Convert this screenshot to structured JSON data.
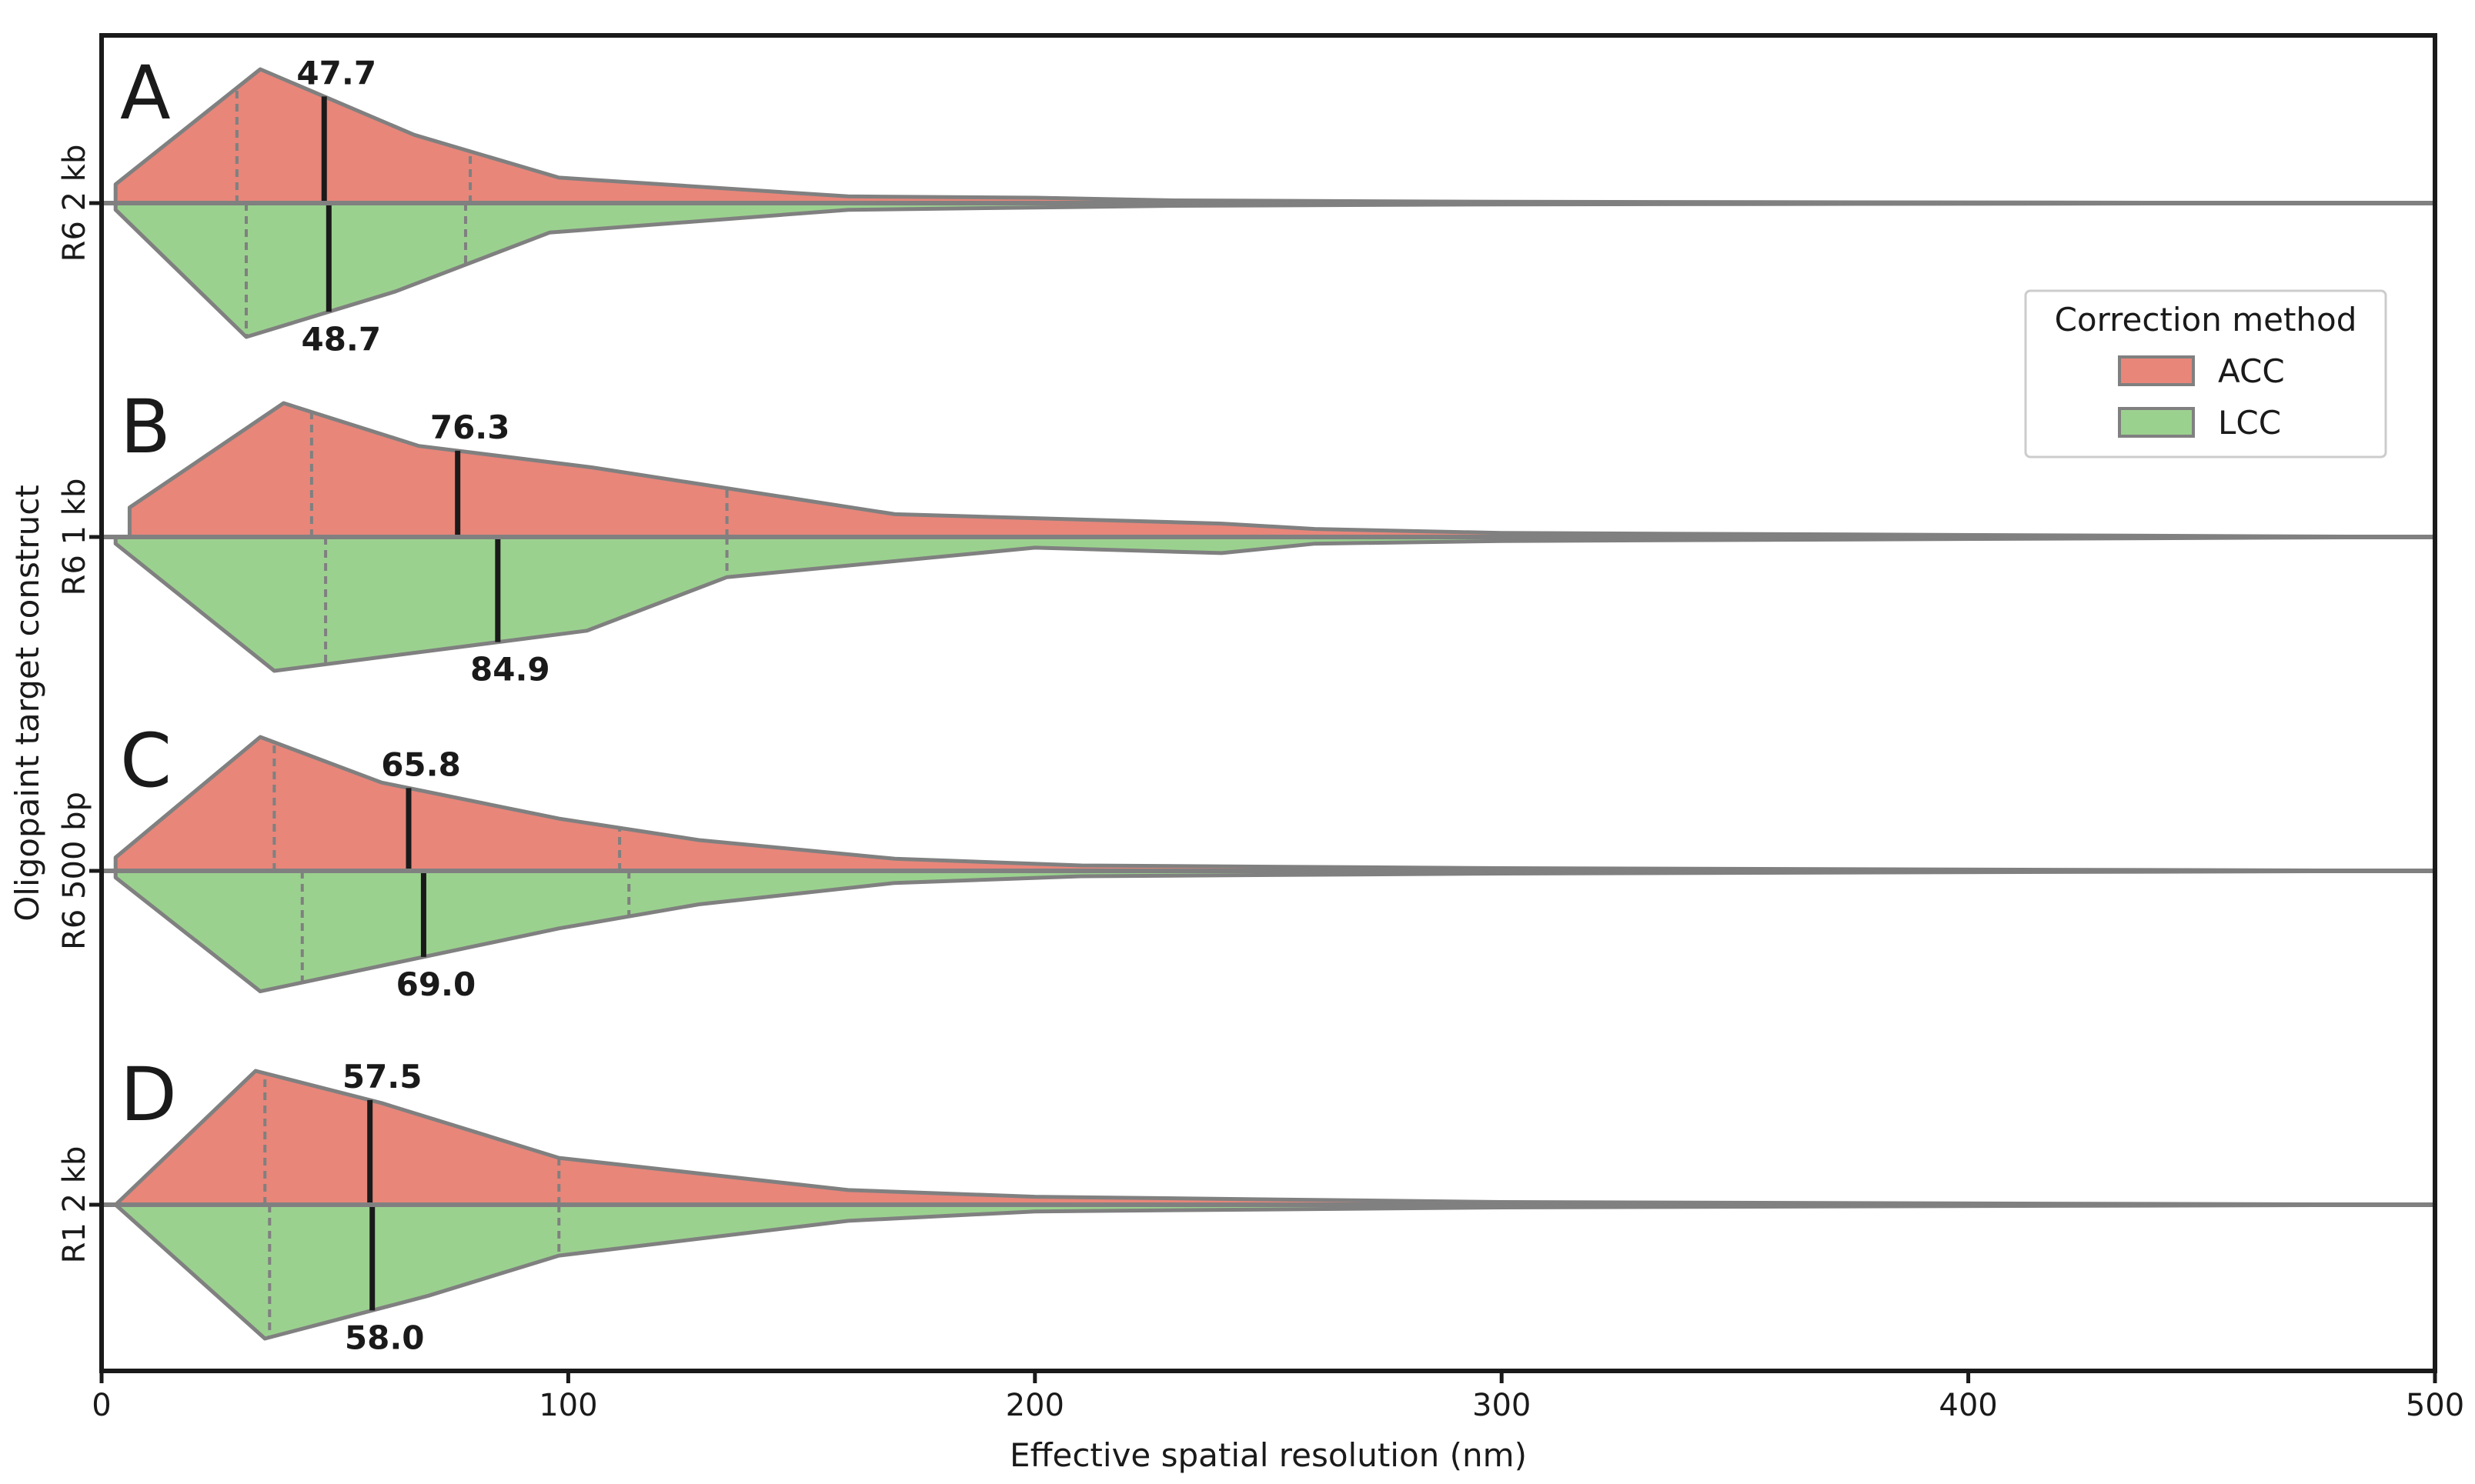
{
  "chart_data": {
    "type": "violin",
    "xlabel": "Effective spatial resolution (nm)",
    "ylabel": "Oligopaint target construct",
    "xlim": [
      0,
      500
    ],
    "xticks": [
      0,
      100,
      200,
      300,
      400,
      500
    ],
    "grid": false,
    "legend": {
      "title": "Correction method",
      "position": "right",
      "entries": [
        {
          "name": "ACC",
          "color": "#e8867a"
        },
        {
          "name": "LCC",
          "color": "#9bd18f"
        }
      ]
    },
    "categories": [
      "R6 2 kb",
      "R6 1 kb",
      "R6 500 bp",
      "R1 2 kb"
    ],
    "panels": [
      {
        "letter": "A",
        "category": "R6 2 kb",
        "acc": {
          "median": 47.7,
          "median_label": "47.7",
          "q1": 29,
          "q3": 79,
          "profile": [
            [
              3,
              0.05
            ],
            [
              3,
              0.14
            ],
            [
              34,
              1.0
            ],
            [
              67,
              0.51
            ],
            [
              98,
              0.19
            ],
            [
              160,
              0.05
            ],
            [
              200,
              0.04
            ],
            [
              230,
              0.02
            ],
            [
              300,
              0.01
            ],
            [
              500,
              0.0
            ]
          ]
        },
        "lcc": {
          "median": 48.7,
          "median_label": "48.7",
          "q1": 31,
          "q3": 78,
          "profile": [
            [
              3,
              0.05
            ],
            [
              31,
              1.0
            ],
            [
              63,
              0.66
            ],
            [
              96,
              0.22
            ],
            [
              160,
              0.05
            ],
            [
              230,
              0.02
            ],
            [
              300,
              0.01
            ],
            [
              500,
              0.0
            ]
          ]
        }
      },
      {
        "letter": "B",
        "category": "R6 1 kb",
        "acc": {
          "median": 76.3,
          "median_label": "76.3",
          "q1": 45,
          "q3": 134,
          "profile": [
            [
              6,
              0.05
            ],
            [
              6,
              0.22
            ],
            [
              39,
              1.0
            ],
            [
              68,
              0.68
            ],
            [
              105,
              0.52
            ],
            [
              170,
              0.17
            ],
            [
              240,
              0.1
            ],
            [
              260,
              0.06
            ],
            [
              300,
              0.03
            ],
            [
              500,
              0.0
            ]
          ]
        },
        "lcc": {
          "median": 84.9,
          "median_label": "84.9",
          "q1": 48,
          "q3": 134,
          "profile": [
            [
              3,
              0.05
            ],
            [
              37,
              1.0
            ],
            [
              104,
              0.7
            ],
            [
              134,
              0.3
            ],
            [
              200,
              0.08
            ],
            [
              240,
              0.12
            ],
            [
              260,
              0.05
            ],
            [
              300,
              0.03
            ],
            [
              500,
              0.0
            ]
          ]
        }
      },
      {
        "letter": "C",
        "category": "R6 500 bp",
        "acc": {
          "median": 65.8,
          "median_label": "65.8",
          "q1": 37,
          "q3": 111,
          "profile": [
            [
              3,
              0.05
            ],
            [
              3,
              0.1
            ],
            [
              34,
              1.0
            ],
            [
              60,
              0.66
            ],
            [
              98,
              0.39
            ],
            [
              128,
              0.23
            ],
            [
              170,
              0.09
            ],
            [
              210,
              0.04
            ],
            [
              300,
              0.02
            ],
            [
              500,
              0.0
            ]
          ]
        },
        "lcc": {
          "median": 69.0,
          "median_label": "69.0",
          "q1": 43,
          "q3": 113,
          "profile": [
            [
              3,
              0.05
            ],
            [
              34,
              0.9
            ],
            [
              98,
              0.43
            ],
            [
              128,
              0.25
            ],
            [
              170,
              0.09
            ],
            [
              210,
              0.04
            ],
            [
              300,
              0.02
            ],
            [
              500,
              0.0
            ]
          ]
        }
      },
      {
        "letter": "D",
        "category": "R1 2 kb",
        "acc": {
          "median": 57.5,
          "median_label": "57.5",
          "q1": 35,
          "q3": 98,
          "profile": [
            [
              3,
              0.0
            ],
            [
              33,
              1.0
            ],
            [
              60,
              0.76
            ],
            [
              98,
              0.35
            ],
            [
              160,
              0.11
            ],
            [
              200,
              0.06
            ],
            [
              300,
              0.02
            ],
            [
              500,
              0.0
            ]
          ]
        },
        "lcc": {
          "median": 58.0,
          "median_label": "58.0",
          "q1": 36,
          "q3": 98,
          "profile": [
            [
              3,
              0.0
            ],
            [
              35,
              1.0
            ],
            [
              70,
              0.68
            ],
            [
              98,
              0.38
            ],
            [
              160,
              0.12
            ],
            [
              200,
              0.05
            ],
            [
              300,
              0.02
            ],
            [
              500,
              0.0
            ]
          ]
        }
      }
    ]
  }
}
